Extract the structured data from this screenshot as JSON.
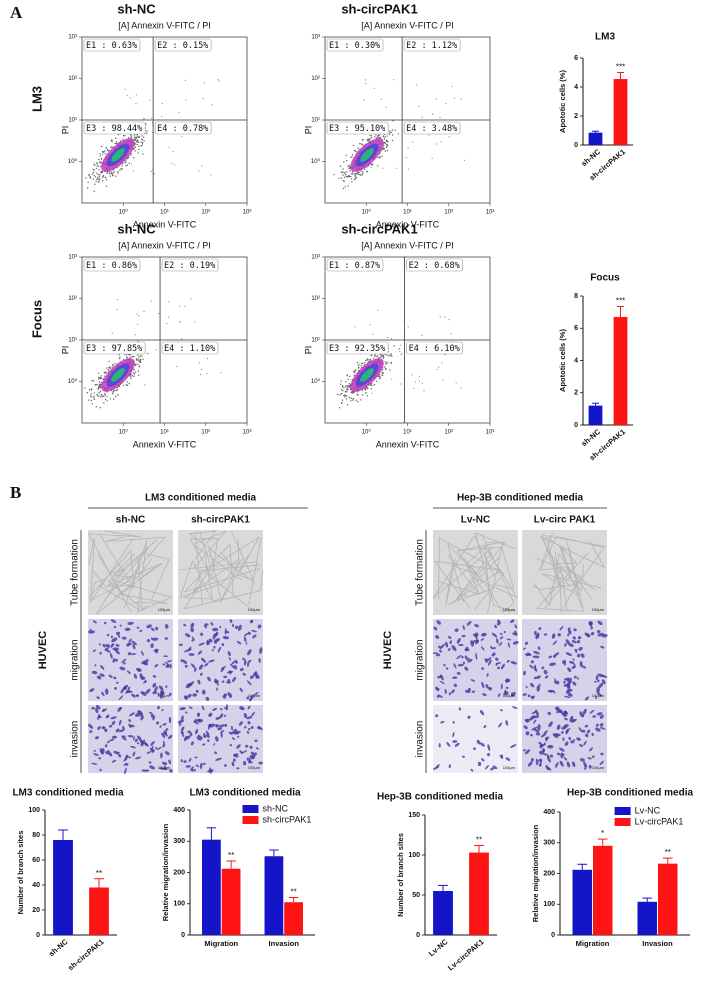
{
  "flow_cytometry": {
    "panel_label": "A",
    "log": true,
    "xlim": [
      0.1,
      1000
    ],
    "ylim": [
      0.1,
      1000
    ],
    "xticks": [
      {
        "value": 1,
        "label": "10⁰"
      },
      {
        "value": 10,
        "label": "10¹"
      },
      {
        "value": 100,
        "label": "10²"
      },
      {
        "value": 1000,
        "label": "10³"
      }
    ],
    "yticks": [
      {
        "value": 1,
        "label": "10⁰"
      },
      {
        "value": 10,
        "label": "10¹"
      },
      {
        "value": 100,
        "label": "10²"
      },
      {
        "value": 1000,
        "label": "10³"
      }
    ],
    "rows": [
      {
        "label": "LM3",
        "plots": [
          {
            "header": "sh-NC",
            "title": "[A] Annexin V-FITC / PI",
            "xlabel": "Annexin V-FITC",
            "ylabel": "PI",
            "gate_x": 5.3,
            "gate_y": 10,
            "quadrants": [
              "E1 : 0.63%",
              "E2 : 0.15%",
              "E3 : 98.44%",
              "E4 : 0.78%"
            ]
          },
          {
            "header": "sh-circPAK1",
            "title": "[A] Annexin V-FITC / PI",
            "xlabel": "Annexin V-FITC",
            "ylabel": "PI",
            "gate_x": 7.4,
            "gate_y": 10,
            "quadrants": [
              "E1 : 0.30%",
              "E2 : 1.12%",
              "E3 : 95.10%",
              "E4 : 3.48%"
            ]
          }
        ]
      },
      {
        "label": "Focus",
        "plots": [
          {
            "header": "sh-NC",
            "title": "[A] Annexin V-FITC / PI",
            "xlabel": "Annexin V-FITC",
            "ylabel": "PI",
            "gate_x": 7.8,
            "gate_y": 10,
            "quadrants": [
              "E1 : 0.86%",
              "E2 : 0.19%",
              "E3 : 97.85%",
              "E4 : 1.10%"
            ]
          },
          {
            "header": "sh-circPAK1",
            "title": "[A] Annexin V-FITC / PI",
            "xlabel": "Annexin V-FITC",
            "ylabel": "PI",
            "gate_x": 8.5,
            "gate_y": 10,
            "quadrants": [
              "E1 : 0.87%",
              "E2 : 0.68%",
              "E3 : 92.35%",
              "E4 : 6.10%"
            ]
          }
        ]
      }
    ]
  },
  "micrographs": {
    "panel_label": "B",
    "cell_line": "HUVEC",
    "rows": [
      "Tube formation",
      "migration",
      "invasion"
    ],
    "scale_bar": "100μm",
    "groups": [
      {
        "title": "LM3 conditioned media",
        "columns": [
          "sh-NC",
          "sh-circPAK1"
        ]
      },
      {
        "title": "Hep-3B conditioned media",
        "columns": [
          "Lv-NC",
          "Lv-circ PAK1"
        ]
      }
    ]
  },
  "chart_data": [
    {
      "type": "bar",
      "title": "LM3",
      "ylabel": "Apototic cells (%)",
      "categories": [
        "sh-NC",
        "sh-circPAK1"
      ],
      "values": [
        0.85,
        4.55
      ],
      "errors": [
        0.1,
        0.45
      ],
      "colors": [
        "#1414c8",
        "#ff1414"
      ],
      "significance": [
        null,
        "***"
      ],
      "ylim": [
        0,
        6
      ],
      "yticks": [
        0,
        2,
        4,
        6
      ]
    },
    {
      "type": "bar",
      "title": "Focus",
      "ylabel": "Apototic cells (%)",
      "categories": [
        "sh-NC",
        "sh-circPAK1"
      ],
      "values": [
        1.2,
        6.7
      ],
      "errors": [
        0.15,
        0.65
      ],
      "colors": [
        "#1414c8",
        "#ff1414"
      ],
      "significance": [
        null,
        "***"
      ],
      "ylim": [
        0,
        8
      ],
      "yticks": [
        0,
        2,
        4,
        6,
        8
      ]
    },
    {
      "type": "bar",
      "title": "LM3 conditioned media",
      "ylabel": "Number of branch sites",
      "categories": [
        "sh-NC",
        "sh-circPAK1"
      ],
      "values": [
        76,
        38
      ],
      "errors": [
        8,
        7
      ],
      "colors": [
        "#1414c8",
        "#ff1414"
      ],
      "significance": [
        null,
        "**"
      ],
      "ylim": [
        0,
        100
      ],
      "yticks": [
        0,
        20,
        40,
        60,
        80,
        100
      ]
    },
    {
      "type": "grouped_bar",
      "title": "LM3 conditioned media",
      "ylabel": "Relative migration/invasion",
      "categories": [
        "Migration",
        "Invasion"
      ],
      "ylim": [
        0,
        400
      ],
      "yticks": [
        0,
        100,
        200,
        300,
        400
      ],
      "legend": "top-right",
      "series": [
        {
          "name": "sh-NC",
          "color": "#1414c8",
          "values": [
            305,
            252
          ],
          "errors": [
            38,
            20
          ],
          "significance": [
            null,
            null
          ]
        },
        {
          "name": "sh-circPAK1",
          "color": "#ff1414",
          "values": [
            212,
            105
          ],
          "errors": [
            25,
            15
          ],
          "significance": [
            "**",
            "**"
          ]
        }
      ]
    },
    {
      "type": "bar",
      "title": "Hep-3B conditioned media",
      "ylabel": "Number of branch sites",
      "categories": [
        "Lv-NC",
        "Lv-circPAK1"
      ],
      "values": [
        55,
        103
      ],
      "errors": [
        7,
        9
      ],
      "colors": [
        "#1414c8",
        "#ff1414"
      ],
      "significance": [
        null,
        "**"
      ],
      "ylim": [
        0,
        150
      ],
      "yticks": [
        0,
        50,
        100,
        150
      ]
    },
    {
      "type": "grouped_bar",
      "title": "Hep-3B conditioned media",
      "ylabel": "Relative migration/invasion",
      "categories": [
        "Migration",
        "Invasion"
      ],
      "ylim": [
        0,
        400
      ],
      "yticks": [
        0,
        100,
        200,
        300,
        400
      ],
      "legend": "top-right",
      "series": [
        {
          "name": "Lv-NC",
          "color": "#1414c8",
          "values": [
            212,
            108
          ],
          "errors": [
            18,
            12
          ],
          "significance": [
            null,
            null
          ]
        },
        {
          "name": "Lv-circPAK1",
          "color": "#ff1414",
          "values": [
            290,
            232
          ],
          "errors": [
            22,
            18
          ],
          "significance": [
            "*",
            "**"
          ]
        }
      ]
    }
  ]
}
